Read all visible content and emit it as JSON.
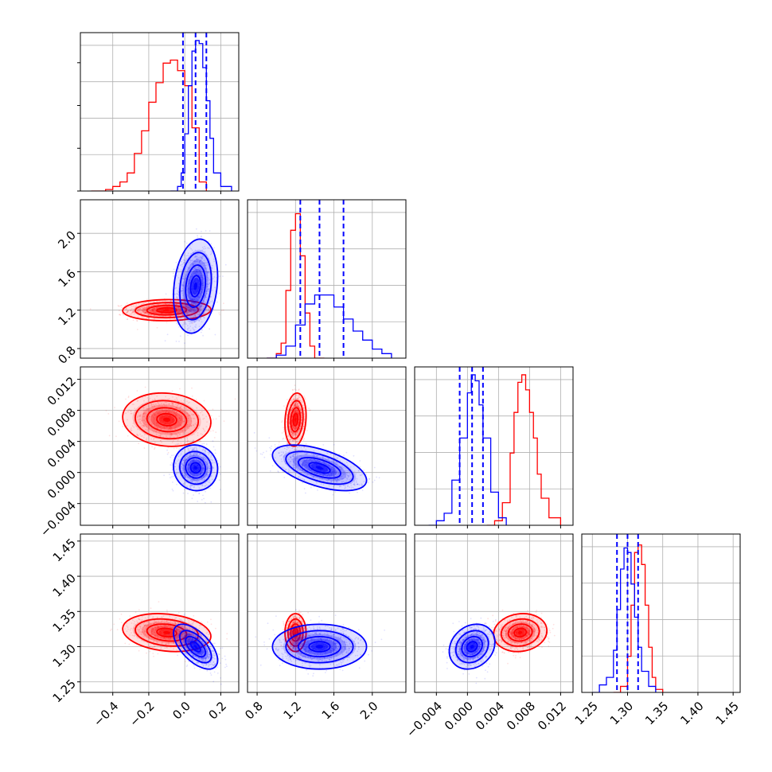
{
  "chart_data": {
    "type": "corner",
    "grid": true,
    "colors": {
      "red": "#ff0000",
      "blue": "#0000ff"
    },
    "variables": [
      {
        "range": [
          -0.58,
          0.3
        ],
        "ticks": [
          -0.4,
          -0.2,
          0.0,
          0.2
        ],
        "tick_labels": [
          "−0.4",
          "−0.2",
          "0.0",
          "0.2"
        ]
      },
      {
        "range": [
          0.7,
          2.35
        ],
        "ticks": [
          0.8,
          1.2,
          1.6,
          2.0
        ],
        "tick_labels": [
          "0.8",
          "1.2",
          "1.6",
          "2.0"
        ]
      },
      {
        "range": [
          -0.0068,
          0.0136
        ],
        "ticks": [
          -0.004,
          0.0,
          0.004,
          0.008,
          0.012
        ],
        "tick_labels": [
          "−0.004",
          "0.000",
          "0.004",
          "0.008",
          "0.012"
        ]
      },
      {
        "range": [
          1.235,
          1.46
        ],
        "ticks": [
          1.25,
          1.3,
          1.35,
          1.4,
          1.45
        ],
        "tick_labels": [
          "1.25",
          "1.30",
          "1.35",
          "1.40",
          "1.45"
        ]
      }
    ],
    "series": [
      {
        "color": "#ff0000",
        "mean": [
          -0.1,
          1.2,
          0.0068,
          1.32
        ],
        "std": [
          0.1,
          0.045,
          0.0014,
          0.011
        ],
        "correlations": [
          [
            0,
            2,
            -0.1
          ],
          [
            1,
            2,
            0.15
          ],
          [
            0,
            3,
            -0.2
          ],
          [
            1,
            3,
            0.0
          ],
          [
            2,
            3,
            0.1
          ],
          [
            0,
            1,
            0.05
          ]
        ],
        "histograms": [
          {
            "x": [
              -0.52,
              -0.44,
              -0.4,
              -0.36,
              -0.32,
              -0.28,
              -0.24,
              -0.2,
              -0.16,
              -0.12,
              -0.08,
              -0.04,
              0.0,
              0.04,
              0.08,
              0.12
            ],
            "counts": [
              0.0,
              0.01,
              0.03,
              0.06,
              0.12,
              0.25,
              0.4,
              0.59,
              0.72,
              0.85,
              0.87,
              0.8,
              0.7,
              0.42,
              0.06,
              0.0
            ]
          },
          {
            "x": [
              0.9,
              1.0,
              1.05,
              1.1,
              1.15,
              1.2,
              1.25,
              1.3,
              1.35,
              1.4,
              1.5
            ],
            "counts": [
              0.0,
              0.03,
              0.1,
              0.45,
              0.85,
              0.96,
              0.68,
              0.3,
              0.08,
              0.0,
              0.0
            ]
          },
          {
            "x": [
              0.0025,
              0.0035,
              0.0045,
              0.0055,
              0.006,
              0.0065,
              0.007,
              0.0075,
              0.008,
              0.0085,
              0.009,
              0.0095,
              0.0105,
              0.012
            ],
            "counts": [
              0.0,
              0.03,
              0.15,
              0.48,
              0.75,
              0.95,
              1.0,
              0.9,
              0.75,
              0.58,
              0.34,
              0.18,
              0.05,
              0.0
            ]
          },
          {
            "x": [
              1.28,
              1.29,
              1.3,
              1.305,
              1.31,
              1.315,
              1.32,
              1.325,
              1.33,
              1.335,
              1.34,
              1.35
            ],
            "counts": [
              0.0,
              0.04,
              0.24,
              0.58,
              0.93,
              0.98,
              0.85,
              0.58,
              0.3,
              0.1,
              0.02,
              0.0
            ]
          }
        ]
      },
      {
        "color": "#0000ff",
        "mean": [
          0.06,
          1.45,
          0.0006,
          1.3
        ],
        "std": [
          0.05,
          0.2,
          0.0012,
          0.013
        ],
        "correlations": [
          [
            0,
            1,
            0.2
          ],
          [
            0,
            2,
            -0.05
          ],
          [
            1,
            2,
            -0.55
          ],
          [
            0,
            3,
            -0.6
          ],
          [
            1,
            3,
            0.0
          ],
          [
            2,
            3,
            0.2
          ]
        ],
        "histograms": [
          {
            "x": [
              -0.08,
              -0.04,
              -0.02,
              0.0,
              0.02,
              0.04,
              0.06,
              0.08,
              0.1,
              0.12,
              0.14,
              0.16,
              0.2,
              0.26
            ],
            "counts": [
              0.0,
              0.03,
              0.12,
              0.38,
              0.7,
              0.93,
              1.0,
              0.98,
              0.82,
              0.6,
              0.35,
              0.12,
              0.03,
              0.0
            ]
          },
          {
            "x": [
              0.9,
              1.0,
              1.1,
              1.2,
              1.3,
              1.4,
              1.5,
              1.6,
              1.7,
              1.8,
              1.9,
              2.0,
              2.1,
              2.2
            ],
            "counts": [
              0.0,
              0.02,
              0.08,
              0.22,
              0.36,
              0.42,
              0.42,
              0.34,
              0.26,
              0.18,
              0.12,
              0.06,
              0.03,
              0.0
            ]
          },
          {
            "x": [
              -0.005,
              -0.004,
              -0.003,
              -0.002,
              -0.001,
              0.0,
              0.0005,
              0.001,
              0.0015,
              0.002,
              0.003,
              0.004,
              0.005
            ],
            "counts": [
              0.0,
              0.03,
              0.08,
              0.3,
              0.58,
              0.88,
              1.0,
              0.96,
              0.8,
              0.58,
              0.22,
              0.05,
              0.0
            ]
          },
          {
            "x": [
              1.25,
              1.26,
              1.27,
              1.28,
              1.285,
              1.29,
              1.295,
              1.3,
              1.305,
              1.31,
              1.315,
              1.32,
              1.33,
              1.34
            ],
            "counts": [
              0.0,
              0.05,
              0.1,
              0.28,
              0.55,
              0.82,
              0.96,
              0.93,
              0.72,
              0.5,
              0.3,
              0.14,
              0.04,
              0.0
            ]
          }
        ],
        "quantiles": [
          [
            -0.01,
            0.06,
            0.12
          ],
          [
            1.25,
            1.45,
            1.7
          ],
          [
            -0.001,
            0.0006,
            0.002
          ],
          [
            1.285,
            1.3,
            1.315
          ]
        ]
      }
    ]
  }
}
